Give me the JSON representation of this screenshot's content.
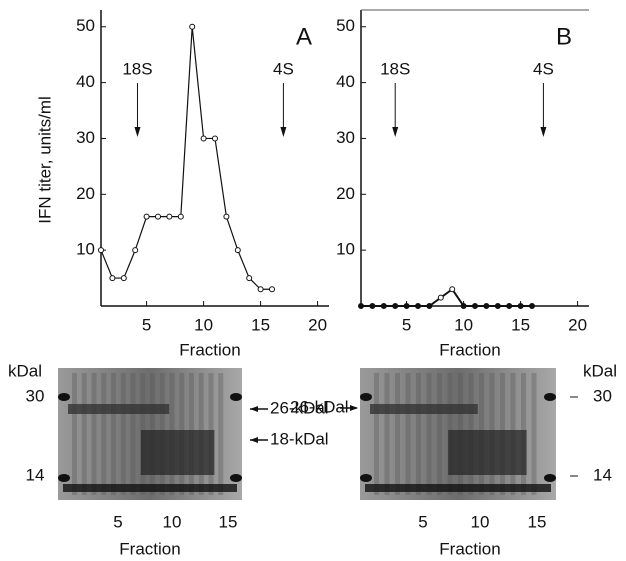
{
  "chart_data": [
    {
      "type": "line",
      "panel": "A",
      "xlabel": "Fraction",
      "ylabel": "IFN titer, units/ml",
      "x": [
        1,
        2,
        3,
        4,
        5,
        6,
        7,
        8,
        9,
        10,
        11,
        12,
        13,
        14,
        15,
        16
      ],
      "values": [
        10,
        5,
        5,
        10,
        16,
        16,
        16,
        16,
        50,
        30,
        30,
        16,
        10,
        5,
        3,
        3
      ],
      "color": "#111111",
      "xlim": [
        1,
        21
      ],
      "ylim": [
        0,
        53
      ],
      "xticks": [
        5,
        10,
        15,
        20
      ],
      "yticks": [
        10,
        20,
        30,
        40,
        50
      ],
      "annotations": [
        "18S",
        "4S"
      ]
    },
    {
      "type": "line",
      "panel": "B",
      "xlabel": "Fraction",
      "x": [
        1,
        2,
        3,
        4,
        5,
        6,
        7,
        8,
        9,
        10,
        11,
        12,
        13,
        14,
        15,
        16
      ],
      "values": [
        0,
        0,
        0,
        0,
        0,
        0,
        0,
        1.5,
        3,
        0,
        0,
        0,
        0,
        0,
        0,
        0
      ],
      "color": "#111111",
      "xlim": [
        1,
        21
      ],
      "ylim": [
        0,
        53
      ],
      "xticks": [
        5,
        10,
        15,
        20
      ],
      "yticks": [
        10,
        20,
        30,
        40,
        50
      ],
      "annotations": [
        "18S",
        "4S"
      ]
    }
  ],
  "gels": [
    {
      "unit": "kDal",
      "markers": [
        "30",
        "14"
      ],
      "arrows": [
        "26-kDal",
        "18-kDal"
      ],
      "lanes": [
        "5",
        "10",
        "15"
      ],
      "xlabel": "Fraction"
    },
    {
      "unit": "kDal",
      "markers": [
        "30",
        "14"
      ],
      "arrows": [
        "26-kDal"
      ],
      "lanes": [
        "5",
        "10",
        "15"
      ],
      "xlabel": "Fraction"
    }
  ]
}
